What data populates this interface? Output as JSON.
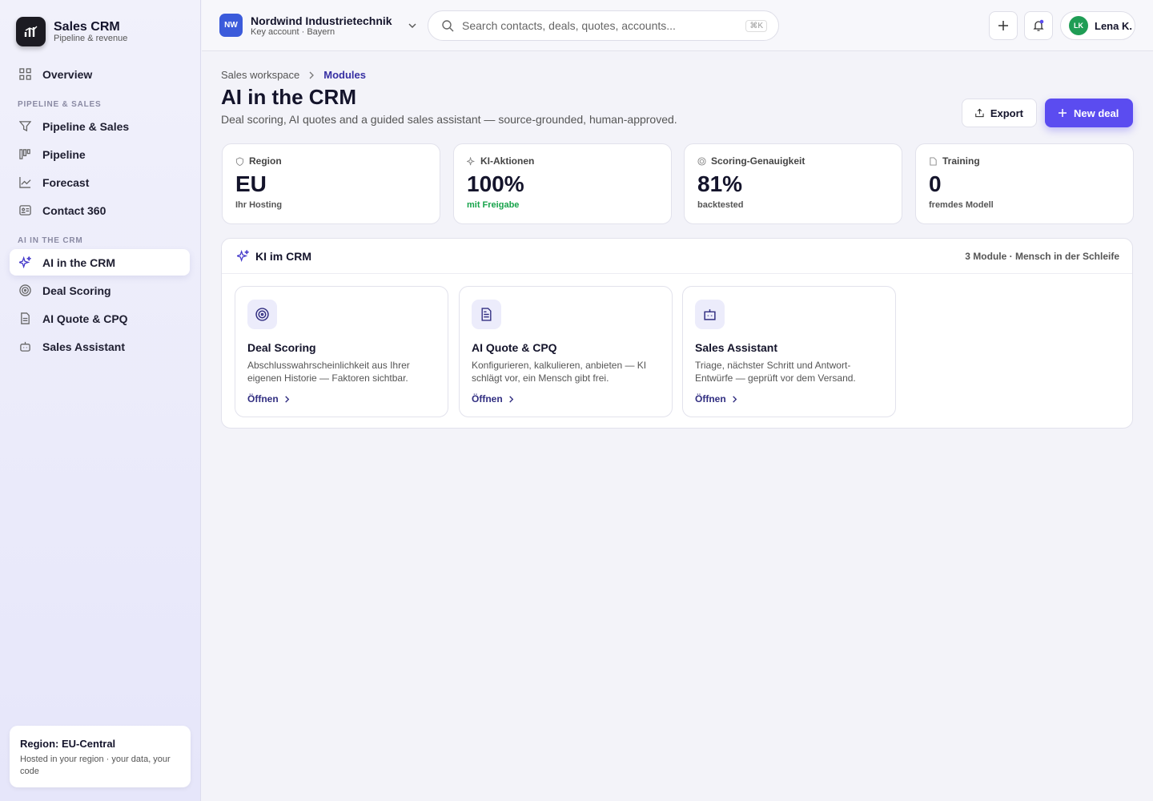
{
  "sidebar": {
    "brand": {
      "title": "Sales CRM",
      "subtitle": "Pipeline & revenue"
    },
    "top_items": [
      "Overview"
    ],
    "sections": [
      {
        "heading": "PIPELINE & SALES",
        "items": [
          "Pipeline & Sales",
          "Pipeline",
          "Forecast",
          "Contact 360"
        ]
      },
      {
        "heading": "AI IN THE CRM",
        "items": [
          "AI in the CRM",
          "Deal Scoring",
          "AI Quote & CPQ",
          "Sales Assistant"
        ]
      }
    ],
    "footer": {
      "title": "Region: EU-Central",
      "text": "Hosted in your region · your data, your code"
    }
  },
  "topbar": {
    "account": {
      "initials": "NW",
      "name": "Nordwind Industrietechnik",
      "subtitle": "Key account · Bayern"
    },
    "search": {
      "placeholder": "Search contacts, deals, quotes, accounts...",
      "shortcut": "⌘K"
    },
    "user": {
      "initials": "LK",
      "name": "Lena K."
    }
  },
  "page": {
    "breadcrumb": [
      "Sales workspace",
      "Modules"
    ],
    "title": "AI in the CRM",
    "subtitle": "Deal scoring, AI quotes and a guided sales assistant — source-grounded, human-approved.",
    "actions": [
      "Export",
      "New deal"
    ]
  },
  "stats": [
    {
      "label": "Region",
      "value": "EU",
      "note": "Ihr Hosting"
    },
    {
      "label": "KI-Aktionen",
      "value": "100%",
      "note": "mit Freigabe"
    },
    {
      "label": "Scoring-Genauigkeit",
      "value": "81%",
      "note": "backtested"
    },
    {
      "label": "Training",
      "value": "0",
      "note": "fremdes Modell"
    }
  ],
  "panel": {
    "title": "KI im CRM",
    "meta": "3 Module · Mensch in der Schleife",
    "modules": [
      {
        "title": "Deal Scoring",
        "description": "Abschlusswahrscheinlichkeit aus Ihrer eigenen Historie — Faktoren sichtbar.",
        "link": "Öffnen"
      },
      {
        "title": "AI Quote & CPQ",
        "description": "Konfigurieren, kalkulieren, anbieten — KI schlägt vor, ein Mensch gibt frei.",
        "link": "Öffnen"
      },
      {
        "title": "Sales Assistant",
        "description": "Triage, nächster Schritt und Antwort-Entwürfe — geprüft vor dem Versand.",
        "link": "Öffnen"
      }
    ]
  }
}
